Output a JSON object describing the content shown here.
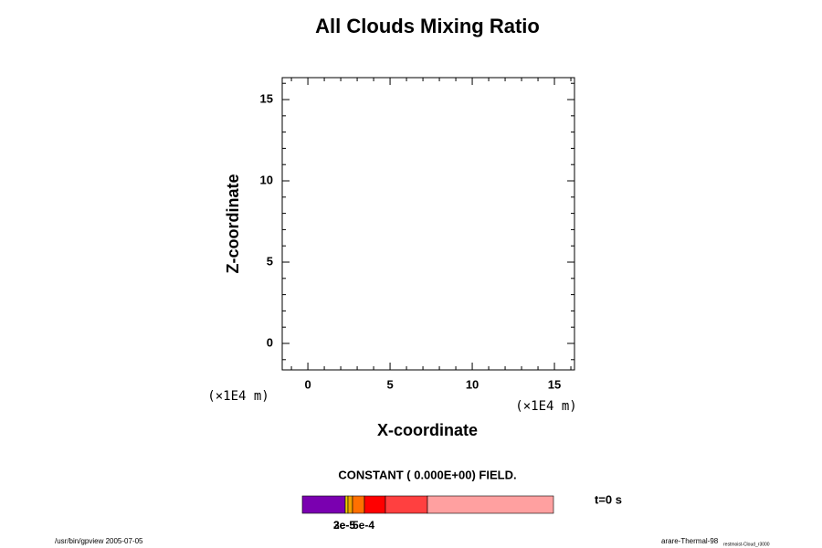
{
  "chart_data": {
    "type": "contour",
    "title": "All Clouds Mixing Ratio",
    "x_label": "X-coordinate",
    "y_label": "Z-coordinate",
    "x_unit": "(×1E4 m)",
    "y_unit": "(×1E4 m)",
    "xlim": [
      -1.56,
      16.22
    ],
    "ylim": [
      -1.63,
      16.35
    ],
    "xticks": [
      0,
      5,
      10,
      15
    ],
    "yticks": [
      0,
      5,
      10,
      15
    ],
    "xminorticks": [
      -1,
      1,
      2,
      3,
      4,
      6,
      7,
      8,
      9,
      11,
      12,
      13,
      14,
      16
    ],
    "yminorticks": [
      -1,
      1,
      2,
      3,
      4,
      6,
      7,
      8,
      9,
      11,
      12,
      13,
      14,
      16
    ],
    "field_note": "CONSTANT ( 0.000E+00) FIELD.",
    "time_label": "t=0 s",
    "colorbar": {
      "colors": [
        "#7a00b0",
        "#f0d000",
        "#f0a000",
        "#ff7000",
        "#ff0000",
        "#ff4040",
        "#ffa0a0"
      ],
      "labels": [
        "2e-5",
        "3e-5",
        "5e-4"
      ]
    },
    "footer_left": "/usr/bin/gpview 2005-07-05",
    "footer_right": "arare-Thermal-98",
    "footer_right_sub": "restmoist-Cloud_r3000"
  }
}
